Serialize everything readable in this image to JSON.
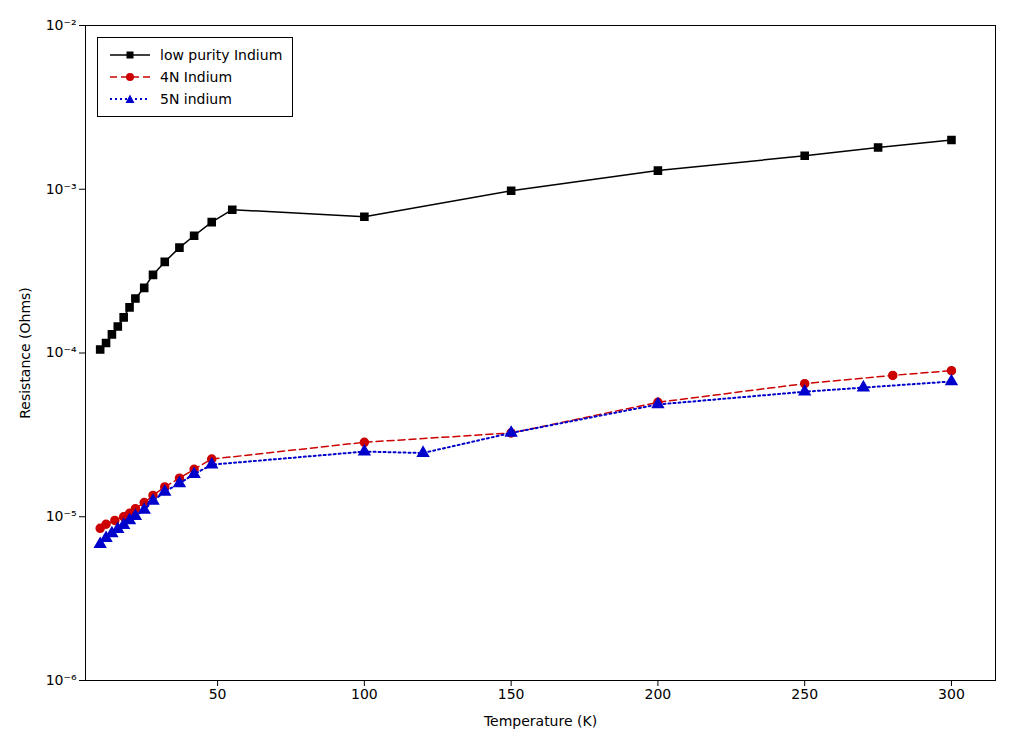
{
  "chart_data": {
    "type": "line",
    "xlabel": "Temperature (K)",
    "ylabel": "Resistance (Ohms)",
    "log": "y",
    "xlim": [
      5,
      315
    ],
    "ylim": [
      1e-06,
      0.01
    ],
    "xticks": [
      50,
      100,
      150,
      200,
      250,
      300
    ],
    "yticks": [
      {
        "value": 1e-06,
        "label": "10⁻⁶"
      },
      {
        "value": 1e-05,
        "label": "10⁻⁵"
      },
      {
        "value": 0.0001,
        "label": "10⁻⁴"
      },
      {
        "value": 0.001,
        "label": "10⁻³"
      },
      {
        "value": 0.01,
        "label": "10⁻²"
      }
    ],
    "grid": false,
    "legend": "upper left",
    "series": [
      {
        "name": "low purity Indium",
        "color": "#000000",
        "marker": "square",
        "line_style": "solid",
        "x": [
          10,
          12,
          14,
          16,
          18,
          20,
          22,
          25,
          28,
          32,
          37,
          42,
          48,
          55,
          100,
          150,
          200,
          250,
          275,
          300
        ],
        "values": [
          0.000105,
          0.000115,
          0.00013,
          0.000145,
          0.000165,
          0.00019,
          0.000215,
          0.00025,
          0.0003,
          0.00036,
          0.00044,
          0.00052,
          0.00063,
          0.00075,
          0.00068,
          0.00098,
          0.0013,
          0.0016,
          0.0018,
          0.002
        ]
      },
      {
        "name": "4N Indium",
        "color": "#cc0000",
        "marker": "circle",
        "line_style": "dashed",
        "x": [
          10,
          12,
          15,
          18,
          20,
          22,
          25,
          28,
          32,
          37,
          42,
          48,
          100,
          150,
          200,
          250,
          280,
          300
        ],
        "values": [
          8.5e-06,
          9e-06,
          9.5e-06,
          1e-05,
          1.05e-05,
          1.12e-05,
          1.22e-05,
          1.35e-05,
          1.52e-05,
          1.72e-05,
          1.95e-05,
          2.25e-05,
          2.85e-05,
          3.25e-05,
          5e-05,
          6.5e-05,
          7.3e-05,
          7.8e-05
        ]
      },
      {
        "name": "5N indium",
        "color": "#0000cc",
        "marker": "triangle",
        "line_style": "dotted",
        "x": [
          10,
          12,
          14,
          16,
          18,
          20,
          22,
          25,
          28,
          32,
          37,
          42,
          48,
          100,
          120,
          150,
          200,
          250,
          270,
          300
        ],
        "values": [
          6.8e-06,
          7.4e-06,
          7.9e-06,
          8.4e-06,
          8.9e-06,
          9.5e-06,
          1.01e-05,
          1.1e-05,
          1.25e-05,
          1.42e-05,
          1.6e-05,
          1.82e-05,
          2.08e-05,
          2.5e-05,
          2.45e-05,
          3.25e-05,
          4.85e-05,
          5.8e-05,
          6.15e-05,
          6.7e-05
        ]
      }
    ]
  }
}
